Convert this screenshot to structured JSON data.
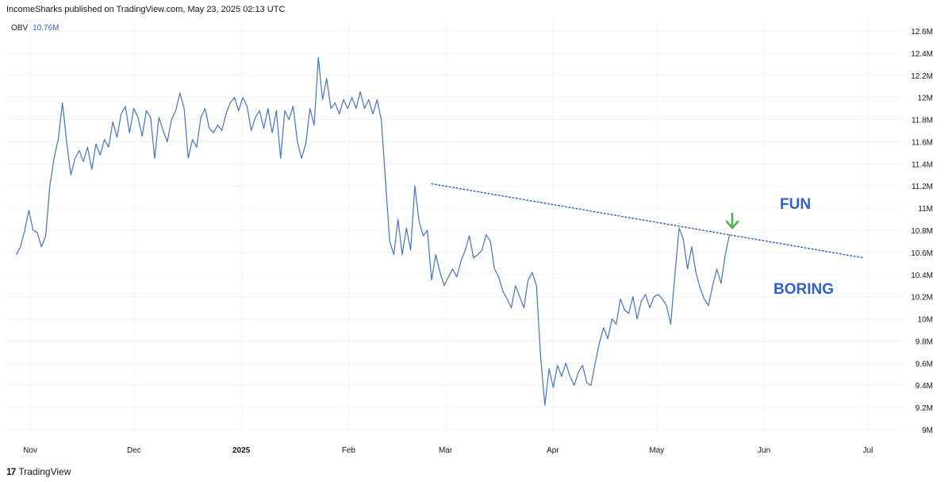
{
  "header": {
    "text": "IncomeSharks published on TradingView.com, May 23, 2025 02:13 UTC"
  },
  "legend": {
    "name": "OBV",
    "value": "10.76M"
  },
  "annotations": {
    "fun": "FUN",
    "boring": "BORING"
  },
  "footer": {
    "brand": "TradingView",
    "logo_icon": "tradingview-logo-icon"
  },
  "colors": {
    "line": "#4472c4",
    "trend": "#2f5fcc",
    "annotation": "#2f5fcc",
    "arrow": "#4caf50",
    "grid": "#f0f3fa",
    "axis_text": "#131722"
  },
  "chart_data": {
    "type": "line",
    "title": "",
    "xlabel": "",
    "ylabel": "",
    "x_tick_labels": [
      "Nov",
      "Dec",
      "2025",
      "Feb",
      "Mar",
      "Apr",
      "May",
      "Jun",
      "Jul"
    ],
    "y_tick_labels": [
      "9M",
      "9.2M",
      "9.4M",
      "9.6M",
      "9.8M",
      "10M",
      "10.2M",
      "10.4M",
      "10.6M",
      "10.8M",
      "11M",
      "11.2M",
      "11.4M",
      "11.6M",
      "11.8M",
      "12M",
      "12.2M",
      "12.4M",
      "12.6M"
    ],
    "ylim": [
      9.0,
      12.6
    ],
    "y_unit": "M",
    "grid": true,
    "series": [
      {
        "name": "OBV",
        "x_range": [
          "2024-10-28",
          "2025-05-22"
        ],
        "values": [
          10.58,
          10.65,
          10.8,
          10.98,
          10.8,
          10.78,
          10.65,
          10.75,
          11.2,
          11.45,
          11.62,
          11.95,
          11.6,
          11.3,
          11.45,
          11.52,
          11.42,
          11.55,
          11.35,
          11.58,
          11.48,
          11.62,
          11.55,
          11.78,
          11.64,
          11.85,
          11.92,
          11.68,
          11.9,
          11.82,
          11.65,
          11.88,
          11.82,
          11.45,
          11.82,
          11.7,
          11.6,
          11.8,
          11.88,
          12.04,
          11.9,
          11.45,
          11.62,
          11.55,
          11.82,
          11.9,
          11.72,
          11.68,
          11.75,
          11.7,
          11.85,
          11.95,
          12.0,
          11.88,
          12.0,
          11.92,
          11.7,
          11.82,
          11.88,
          11.72,
          11.9,
          11.68,
          11.88,
          11.45,
          11.88,
          11.8,
          11.92,
          11.6,
          11.45,
          11.58,
          11.9,
          11.75,
          12.36,
          11.98,
          12.17,
          11.9,
          11.95,
          11.85,
          11.98,
          11.9,
          12.0,
          11.9,
          12.05,
          11.9,
          11.98,
          11.85,
          11.98,
          11.8,
          11.25,
          10.7,
          10.58,
          10.9,
          10.58,
          10.82,
          10.62,
          11.2,
          10.88,
          10.75,
          10.8,
          10.35,
          10.58,
          10.42,
          10.3,
          10.38,
          10.45,
          10.38,
          10.52,
          10.62,
          10.75,
          10.55,
          10.58,
          10.62,
          10.76,
          10.7,
          10.45,
          10.38,
          10.25,
          10.18,
          10.1,
          10.3,
          10.2,
          10.1,
          10.35,
          10.42,
          10.3,
          9.65,
          9.22,
          9.55,
          9.38,
          9.58,
          9.48,
          9.6,
          9.48,
          9.4,
          9.52,
          9.58,
          9.42,
          9.4,
          9.6,
          9.78,
          9.92,
          9.82,
          10.0,
          9.95,
          10.18,
          10.08,
          10.05,
          10.2,
          10.0,
          10.16,
          10.22,
          10.1,
          10.2,
          10.22,
          10.18,
          10.12,
          9.95,
          10.4,
          10.82,
          10.72,
          10.45,
          10.65,
          10.42,
          10.28,
          10.18,
          10.12,
          10.3,
          10.45,
          10.32,
          10.58,
          10.76
        ]
      }
    ],
    "trendline": {
      "style": "dotted",
      "points": [
        {
          "x": "2025-02-25",
          "y": 11.22
        },
        {
          "x": "2025-06-30",
          "y": 10.55
        }
      ]
    }
  }
}
